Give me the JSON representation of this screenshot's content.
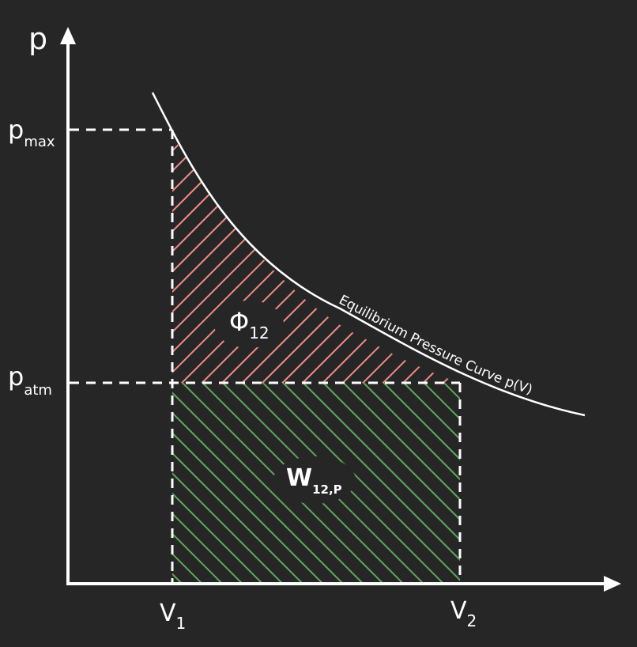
{
  "colors": {
    "background": "#262626",
    "line": "#ffffff",
    "phi_hatch": "#f08c86",
    "work_hatch": "#5fa85a"
  },
  "axes": {
    "y_label": "p",
    "x_label": "",
    "y_ticks": {
      "pmax": {
        "main": "p",
        "sub": "max"
      },
      "patm": {
        "main": "p",
        "sub": "atm"
      }
    },
    "x_ticks": {
      "v1": {
        "main": "V",
        "sub": "1"
      },
      "v2": {
        "main": "V",
        "sub": "2"
      }
    }
  },
  "curve": {
    "label": "Equilibrium Pressure Curve p(V)"
  },
  "regions": {
    "phi": {
      "main": "Φ",
      "sub": "12"
    },
    "work": {
      "main": "W",
      "sub": "12,P"
    }
  }
}
